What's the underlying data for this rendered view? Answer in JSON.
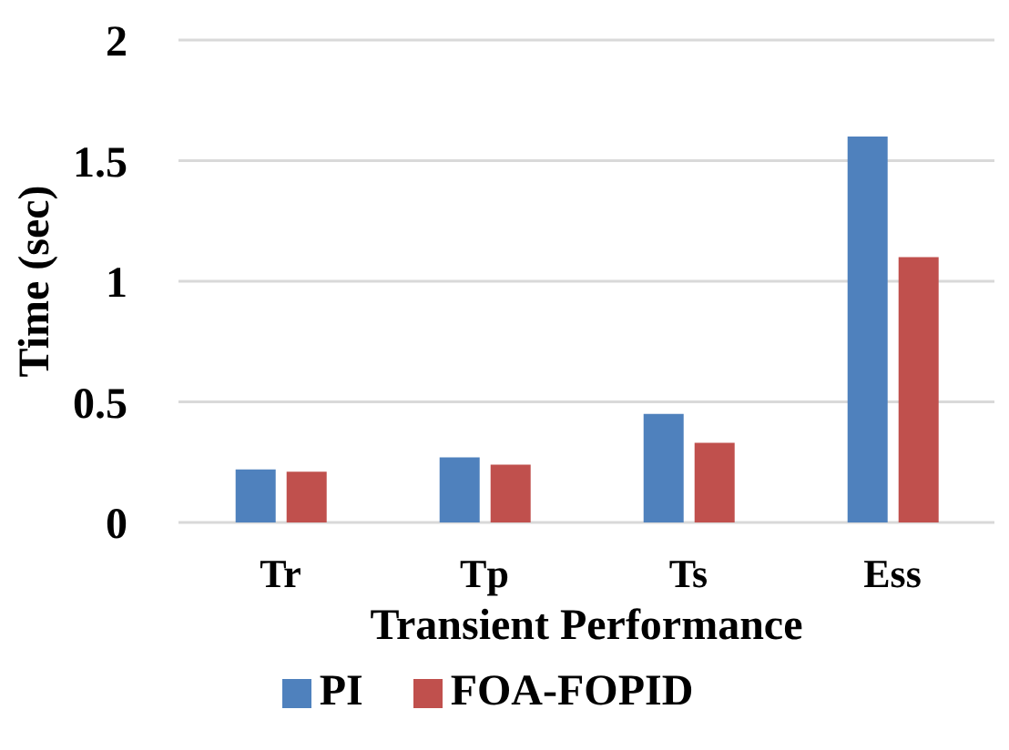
{
  "chart_data": {
    "type": "bar",
    "xlabel": "Transient Performance",
    "ylabel": "Time (sec)",
    "categories": [
      "Tr",
      "Tp",
      "Ts",
      "Ess"
    ],
    "series": [
      {
        "name": "PI",
        "color": "#4f81bd",
        "values": [
          0.22,
          0.27,
          0.45,
          1.6
        ]
      },
      {
        "name": "FOA-FOPID",
        "color": "#c0504d",
        "values": [
          0.21,
          0.24,
          0.33,
          1.1
        ]
      }
    ],
    "ylim": [
      0,
      2
    ],
    "yticks": [
      0,
      0.5,
      1,
      1.5,
      2
    ],
    "grid": "y",
    "legend": "bottom"
  }
}
